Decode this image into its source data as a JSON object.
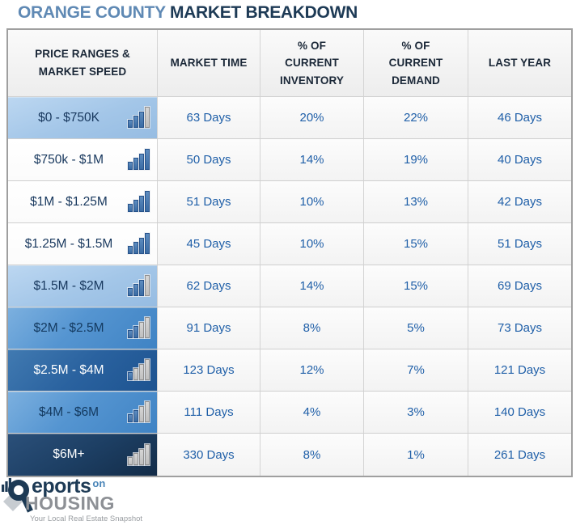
{
  "title": {
    "region": "ORANGE COUNTY",
    "rest": " MARKET BREAKDOWN"
  },
  "table": {
    "headers": {
      "price": "PRICE RANGES &\nMARKET SPEED",
      "market_time": "MARKET TIME",
      "inventory": "% OF\nCURRENT\nINVENTORY",
      "demand": "% OF\nCURRENT\nDEMAND",
      "last_year": "LAST YEAR"
    },
    "rows": [
      {
        "label": "$0 - $750K",
        "market_time": "63 Days",
        "inventory": "20%",
        "demand": "22%",
        "last_year": "46 Days",
        "blue_bars": 3
      },
      {
        "label": "$750k - $1M",
        "market_time": "50 Days",
        "inventory": "14%",
        "demand": "19%",
        "last_year": "40 Days",
        "blue_bars": 4
      },
      {
        "label": "$1M - $1.25M",
        "market_time": "51 Days",
        "inventory": "10%",
        "demand": "13%",
        "last_year": "42 Days",
        "blue_bars": 4
      },
      {
        "label": "$1.25M - $1.5M",
        "market_time": "45 Days",
        "inventory": "10%",
        "demand": "15%",
        "last_year": "51 Days",
        "blue_bars": 4
      },
      {
        "label": "$1.5M - $2M",
        "market_time": "62 Days",
        "inventory": "14%",
        "demand": "15%",
        "last_year": "69 Days",
        "blue_bars": 3
      },
      {
        "label": "$2M - $2.5M",
        "market_time": "91 Days",
        "inventory": "8%",
        "demand": "5%",
        "last_year": "73 Days",
        "blue_bars": 2
      },
      {
        "label": "$2.5M - $4M",
        "market_time": "123 Days",
        "inventory": "12%",
        "demand": "7%",
        "last_year": "121 Days",
        "blue_bars": 1
      },
      {
        "label": "$4M - $6M",
        "market_time": "111 Days",
        "inventory": "4%",
        "demand": "3%",
        "last_year": "140 Days",
        "blue_bars": 2
      },
      {
        "label": "$6M+",
        "market_time": "330 Days",
        "inventory": "8%",
        "demand": "1%",
        "last_year": "261 Days",
        "blue_bars": 0
      }
    ]
  },
  "logo": {
    "reports_text": "eports",
    "on_text": "on",
    "housing_text": "HOUSING",
    "tagline": "Your Local Real Estate Snapshot"
  },
  "colors": {
    "title_region_blue": "#5f89b4",
    "title_navy": "#1d3a55",
    "data_text_blue": "#1f5fa8",
    "price_text_navy": "#17375d",
    "row_light_blue": "#a3c6e8",
    "row_medium_blue": "#5595d1",
    "row_dark_blue": "#2a629f",
    "row_navy": "#1d3f64",
    "bar_blue": "#3a6ba3",
    "bar_gray": "#bfbfbf",
    "logo_gray": "#8d9095"
  },
  "chart_data": {
    "type": "table",
    "title": "Orange County Market Breakdown",
    "columns": [
      "Price Ranges & Market Speed",
      "Market Time",
      "% of Current Inventory",
      "% of Current Demand",
      "Last Year"
    ],
    "rows": [
      [
        "$0 - $750K",
        "63 Days",
        "20%",
        "22%",
        "46 Days"
      ],
      [
        "$750k - $1M",
        "50 Days",
        "14%",
        "19%",
        "40 Days"
      ],
      [
        "$1M - $1.25M",
        "51 Days",
        "10%",
        "13%",
        "42 Days"
      ],
      [
        "$1.25M - $1.5M",
        "45 Days",
        "10%",
        "15%",
        "51 Days"
      ],
      [
        "$1.5M - $2M",
        "62 Days",
        "14%",
        "15%",
        "69 Days"
      ],
      [
        "$2M - $2.5M",
        "91 Days",
        "8%",
        "5%",
        "73 Days"
      ],
      [
        "$2.5M - $4M",
        "123 Days",
        "12%",
        "7%",
        "121 Days"
      ],
      [
        "$4M - $6M",
        "111 Days",
        "4%",
        "3%",
        "140 Days"
      ],
      [
        "$6M+",
        "330 Days",
        "8%",
        "1%",
        "261 Days"
      ]
    ],
    "market_speed_bars_of_4": [
      3,
      4,
      4,
      4,
      3,
      2,
      1,
      2,
      0
    ]
  }
}
